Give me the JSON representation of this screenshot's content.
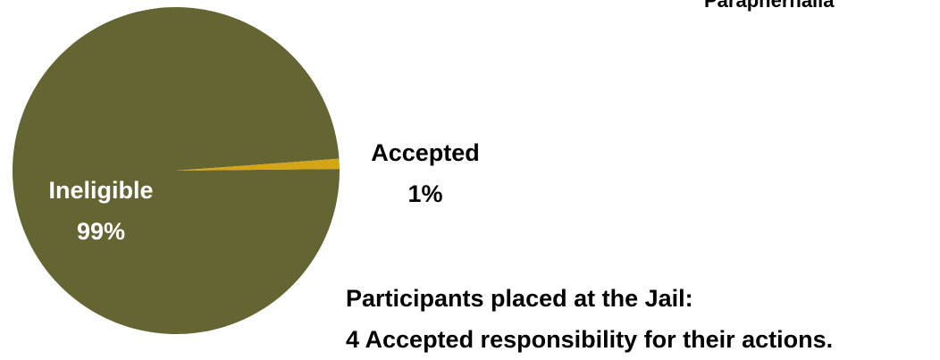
{
  "chart_data": {
    "type": "pie",
    "title": "",
    "slices": [
      {
        "label": "Ineligible",
        "percent_label": "99%",
        "value": 99,
        "color": "#656433"
      },
      {
        "label": "Accepted",
        "percent_label": "1%",
        "value": 1,
        "color": "#d4a517"
      }
    ],
    "legend": "none"
  },
  "header_clipped_text": "Paraphernalia",
  "note": {
    "line1": "Participants placed at the Jail:",
    "line2": "4 Accepted responsibility for their actions."
  }
}
